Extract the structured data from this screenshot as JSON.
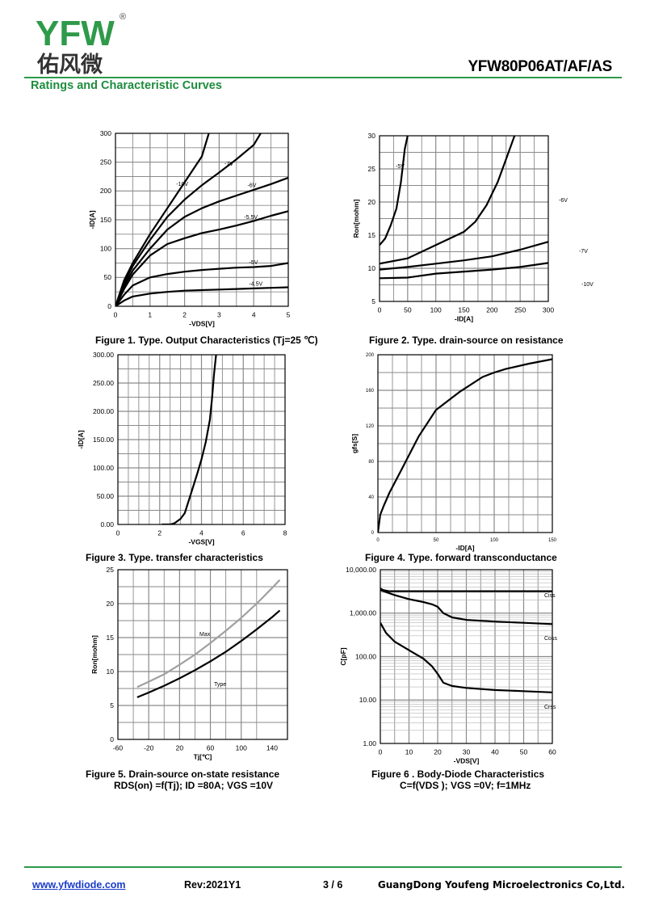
{
  "header": {
    "logo_text": "YFW",
    "logo_cn": "佑风微",
    "logo_reg": "®",
    "part_number": "YFW80P06AT/AF/AS",
    "section_title": "Ratings and Characteristic Curves"
  },
  "footer": {
    "url": "www.yfwdiode.com",
    "rev": "Rev:2021Y1",
    "page": "3 / 6",
    "company": "GuangDong Youfeng Microelectronics Co,Ltd."
  },
  "colors": {
    "green": "#2e9a4a",
    "link": "#1a3cc8",
    "grid": "#8a8a8a",
    "max_curve": "#a0a0a0"
  },
  "figures": {
    "f1": {
      "caption": "Figure 1. Type. Output Characteristics (Tj=25 ℃)"
    },
    "f2": {
      "caption": "Figure 2. Type. drain-source on resistance"
    },
    "f3": {
      "caption": "Figure 3. Type. transfer characteristics"
    },
    "f4": {
      "caption": "Figure 4. Type. forward transconductance"
    },
    "f5": {
      "caption": "Figure 5. Drain-source on-state resistance",
      "caption2": "RDS(on) =f(Tj); ID =80A; VGS =10V"
    },
    "f6": {
      "caption": "Figure 6 .  Body-Diode Characteristics",
      "caption2": "C=f(VDS ); VGS =0V; f=1MHz"
    }
  },
  "chart_data": [
    {
      "id": "f1",
      "type": "line",
      "xlabel": "-VDS[V]",
      "ylabel": "-ID[A]",
      "xlim": [
        0,
        5
      ],
      "ylim": [
        0,
        300
      ],
      "xticks": [
        0,
        1,
        2,
        3,
        4,
        5
      ],
      "yticks": [
        0,
        50,
        100,
        150,
        200,
        250,
        300
      ],
      "tick_labels_x": [
        "0",
        "1",
        "2",
        "3",
        "4",
        "5"
      ],
      "tick_labels_y": [
        "0",
        "50",
        "100",
        "150",
        "200",
        "250",
        "300"
      ],
      "grid": true,
      "series": [
        {
          "name": "-10V",
          "x": [
            0,
            0.25,
            0.5,
            1,
            1.5,
            2,
            2.5,
            2.7
          ],
          "y": [
            0,
            45,
            75,
            125,
            170,
            215,
            260,
            300
          ]
        },
        {
          "name": "-7V",
          "x": [
            0,
            0.25,
            0.5,
            1,
            1.5,
            2,
            2.5,
            3,
            3.5,
            4,
            4.2
          ],
          "y": [
            0,
            40,
            70,
            115,
            155,
            185,
            210,
            232,
            255,
            280,
            300
          ]
        },
        {
          "name": "-6V",
          "x": [
            0,
            0.25,
            0.5,
            1,
            1.5,
            2,
            2.5,
            3,
            3.5,
            4,
            4.5,
            5
          ],
          "y": [
            0,
            35,
            62,
            100,
            133,
            155,
            170,
            182,
            192,
            202,
            212,
            223
          ]
        },
        {
          "name": "-5.5V",
          "x": [
            0,
            0.25,
            0.5,
            1,
            1.5,
            2,
            2.5,
            3,
            3.5,
            4,
            4.5,
            5
          ],
          "y": [
            0,
            30,
            55,
            88,
            108,
            118,
            127,
            133,
            140,
            148,
            157,
            165
          ]
        },
        {
          "name": "-5V",
          "x": [
            0,
            0.25,
            0.5,
            1,
            1.5,
            2,
            2.5,
            3,
            3.5,
            4,
            4.5,
            5
          ],
          "y": [
            0,
            20,
            36,
            50,
            56,
            60,
            63,
            65,
            67,
            68,
            70,
            75
          ]
        },
        {
          "name": "-4.5V",
          "x": [
            0,
            0.25,
            0.5,
            1,
            1.5,
            2,
            2.5,
            3,
            3.5,
            4,
            4.5,
            5
          ],
          "y": [
            0,
            10,
            17,
            22,
            25,
            27,
            28,
            29,
            30,
            31,
            32,
            33
          ]
        }
      ]
    },
    {
      "id": "f2",
      "type": "line",
      "xlabel": "-ID[A]",
      "ylabel": "Ron[mohm]",
      "xlim": [
        0,
        300
      ],
      "ylim": [
        5,
        30
      ],
      "xticks": [
        0,
        50,
        100,
        150,
        200,
        250,
        300
      ],
      "yticks": [
        5,
        10,
        15,
        20,
        25,
        30
      ],
      "tick_labels_x": [
        "0",
        "50",
        "100",
        "150",
        "200",
        "250",
        "300"
      ],
      "tick_labels_y": [
        "5",
        "10",
        "15",
        "20",
        "25",
        "30"
      ],
      "grid": true,
      "series": [
        {
          "name": "-5V",
          "x": [
            0,
            10,
            20,
            30,
            38,
            45,
            50
          ],
          "y": [
            13.5,
            14.5,
            16.5,
            19,
            23,
            28,
            30
          ]
        },
        {
          "name": "-6V",
          "x": [
            0,
            50,
            100,
            150,
            170,
            190,
            210,
            225,
            240
          ],
          "y": [
            10.7,
            11.5,
            13.5,
            15.5,
            17,
            19.5,
            23,
            26.5,
            30
          ]
        },
        {
          "name": "-7V",
          "x": [
            0,
            50,
            100,
            150,
            200,
            250,
            300
          ],
          "y": [
            9.8,
            10.2,
            10.7,
            11.2,
            11.8,
            12.8,
            14
          ]
        },
        {
          "name": "-10V",
          "x": [
            0,
            50,
            100,
            150,
            200,
            250,
            300
          ],
          "y": [
            8.5,
            8.6,
            9.2,
            9.5,
            9.8,
            10.2,
            10.8
          ]
        }
      ]
    },
    {
      "id": "f3",
      "type": "line",
      "xlabel": "-VGS[V]",
      "ylabel": "-ID[A]",
      "xlim": [
        0,
        8
      ],
      "ylim": [
        0,
        300
      ],
      "xticks": [
        0,
        2,
        4,
        6,
        8
      ],
      "yticks": [
        0,
        50,
        100,
        150,
        200,
        250,
        300
      ],
      "tick_labels_x": [
        "0",
        "2",
        "4",
        "6",
        "8"
      ],
      "tick_labels_y": [
        "0.00",
        "50.00",
        "100.00",
        "150.00",
        "200.00",
        "250.00",
        "300.00"
      ],
      "grid": true,
      "series": [
        {
          "name": "",
          "x": [
            2.1,
            2.5,
            2.7,
            3.0,
            3.2,
            3.5,
            3.8,
            4.0,
            4.2,
            4.4,
            4.5,
            4.6,
            4.7
          ],
          "y": [
            0,
            0,
            2,
            10,
            20,
            55,
            90,
            115,
            145,
            185,
            220,
            265,
            300
          ]
        }
      ]
    },
    {
      "id": "f4",
      "type": "line",
      "xlabel": "-ID[A]",
      "ylabel": "gfs[S]",
      "xlim": [
        0,
        150
      ],
      "ylim": [
        0,
        200
      ],
      "xticks": [
        0,
        50,
        100,
        150
      ],
      "yticks": [
        0,
        40,
        80,
        120,
        160,
        200
      ],
      "tick_labels_x": [
        "0",
        "50",
        "100",
        "150"
      ],
      "tick_labels_y": [
        "0",
        "40",
        "80",
        "120",
        "160",
        "200"
      ],
      "grid": true,
      "series": [
        {
          "name": "",
          "x": [
            0,
            2,
            5,
            10,
            20,
            35,
            50,
            70,
            90,
            100,
            110,
            130,
            150
          ],
          "y": [
            0,
            20,
            30,
            45,
            70,
            108,
            138,
            158,
            175,
            180,
            184,
            190,
            195
          ]
        }
      ]
    },
    {
      "id": "f5",
      "type": "line",
      "xlabel": "Tj[℃]",
      "ylabel": "Ron[mohm]",
      "xlim": [
        -60,
        160
      ],
      "ylim": [
        0,
        25
      ],
      "xticks": [
        -60,
        -20,
        20,
        60,
        100,
        140
      ],
      "yticks": [
        0,
        5,
        10,
        15,
        20,
        25
      ],
      "tick_labels_x": [
        "-60",
        "-20",
        "20",
        "60",
        "100",
        "140"
      ],
      "tick_labels_y": [
        "0",
        "5",
        "10",
        "15",
        "20",
        "25"
      ],
      "grid": true,
      "series": [
        {
          "name": "Max",
          "x": [
            -35,
            -20,
            0,
            20,
            40,
            60,
            80,
            100,
            120,
            140,
            150
          ],
          "y": [
            7.7,
            8.5,
            9.6,
            11,
            12.5,
            14.2,
            16,
            17.9,
            20,
            22.3,
            23.5
          ]
        },
        {
          "name": "Type",
          "x": [
            -35,
            -20,
            0,
            20,
            40,
            60,
            80,
            100,
            120,
            140,
            150
          ],
          "y": [
            6.2,
            6.9,
            7.9,
            9,
            10.2,
            11.5,
            12.9,
            14.5,
            16.2,
            18,
            19
          ]
        }
      ]
    },
    {
      "id": "f6",
      "type": "line",
      "log_y": true,
      "xlabel": "-VDS[V]",
      "ylabel": "C[pF]",
      "xlim": [
        0,
        60
      ],
      "ylim": [
        1,
        10000
      ],
      "xticks": [
        0,
        10,
        20,
        30,
        40,
        50,
        60
      ],
      "yticks": [
        1,
        10,
        100,
        1000,
        10000
      ],
      "tick_labels_x": [
        "0",
        "10",
        "20",
        "30",
        "40",
        "50",
        "60"
      ],
      "tick_labels_y": [
        "1.00",
        "10.00",
        "100.00",
        "1,000.00",
        "10,000.00"
      ],
      "grid": true,
      "series": [
        {
          "name": "Ciss",
          "x": [
            0,
            1,
            3,
            60
          ],
          "y": [
            3700,
            3400,
            3200,
            3200
          ]
        },
        {
          "name": "Coss",
          "x": [
            0,
            5,
            10,
            15,
            18,
            20,
            22,
            25,
            30,
            40,
            50,
            60
          ],
          "y": [
            3400,
            2600,
            2100,
            1800,
            1600,
            1400,
            1000,
            800,
            700,
            640,
            600,
            560
          ]
        },
        {
          "name": "Crss",
          "x": [
            0,
            2,
            5,
            10,
            15,
            18,
            20,
            22,
            25,
            30,
            40,
            50,
            60
          ],
          "y": [
            600,
            350,
            220,
            140,
            90,
            60,
            40,
            25,
            21,
            19,
            17,
            16,
            15
          ]
        }
      ]
    }
  ]
}
